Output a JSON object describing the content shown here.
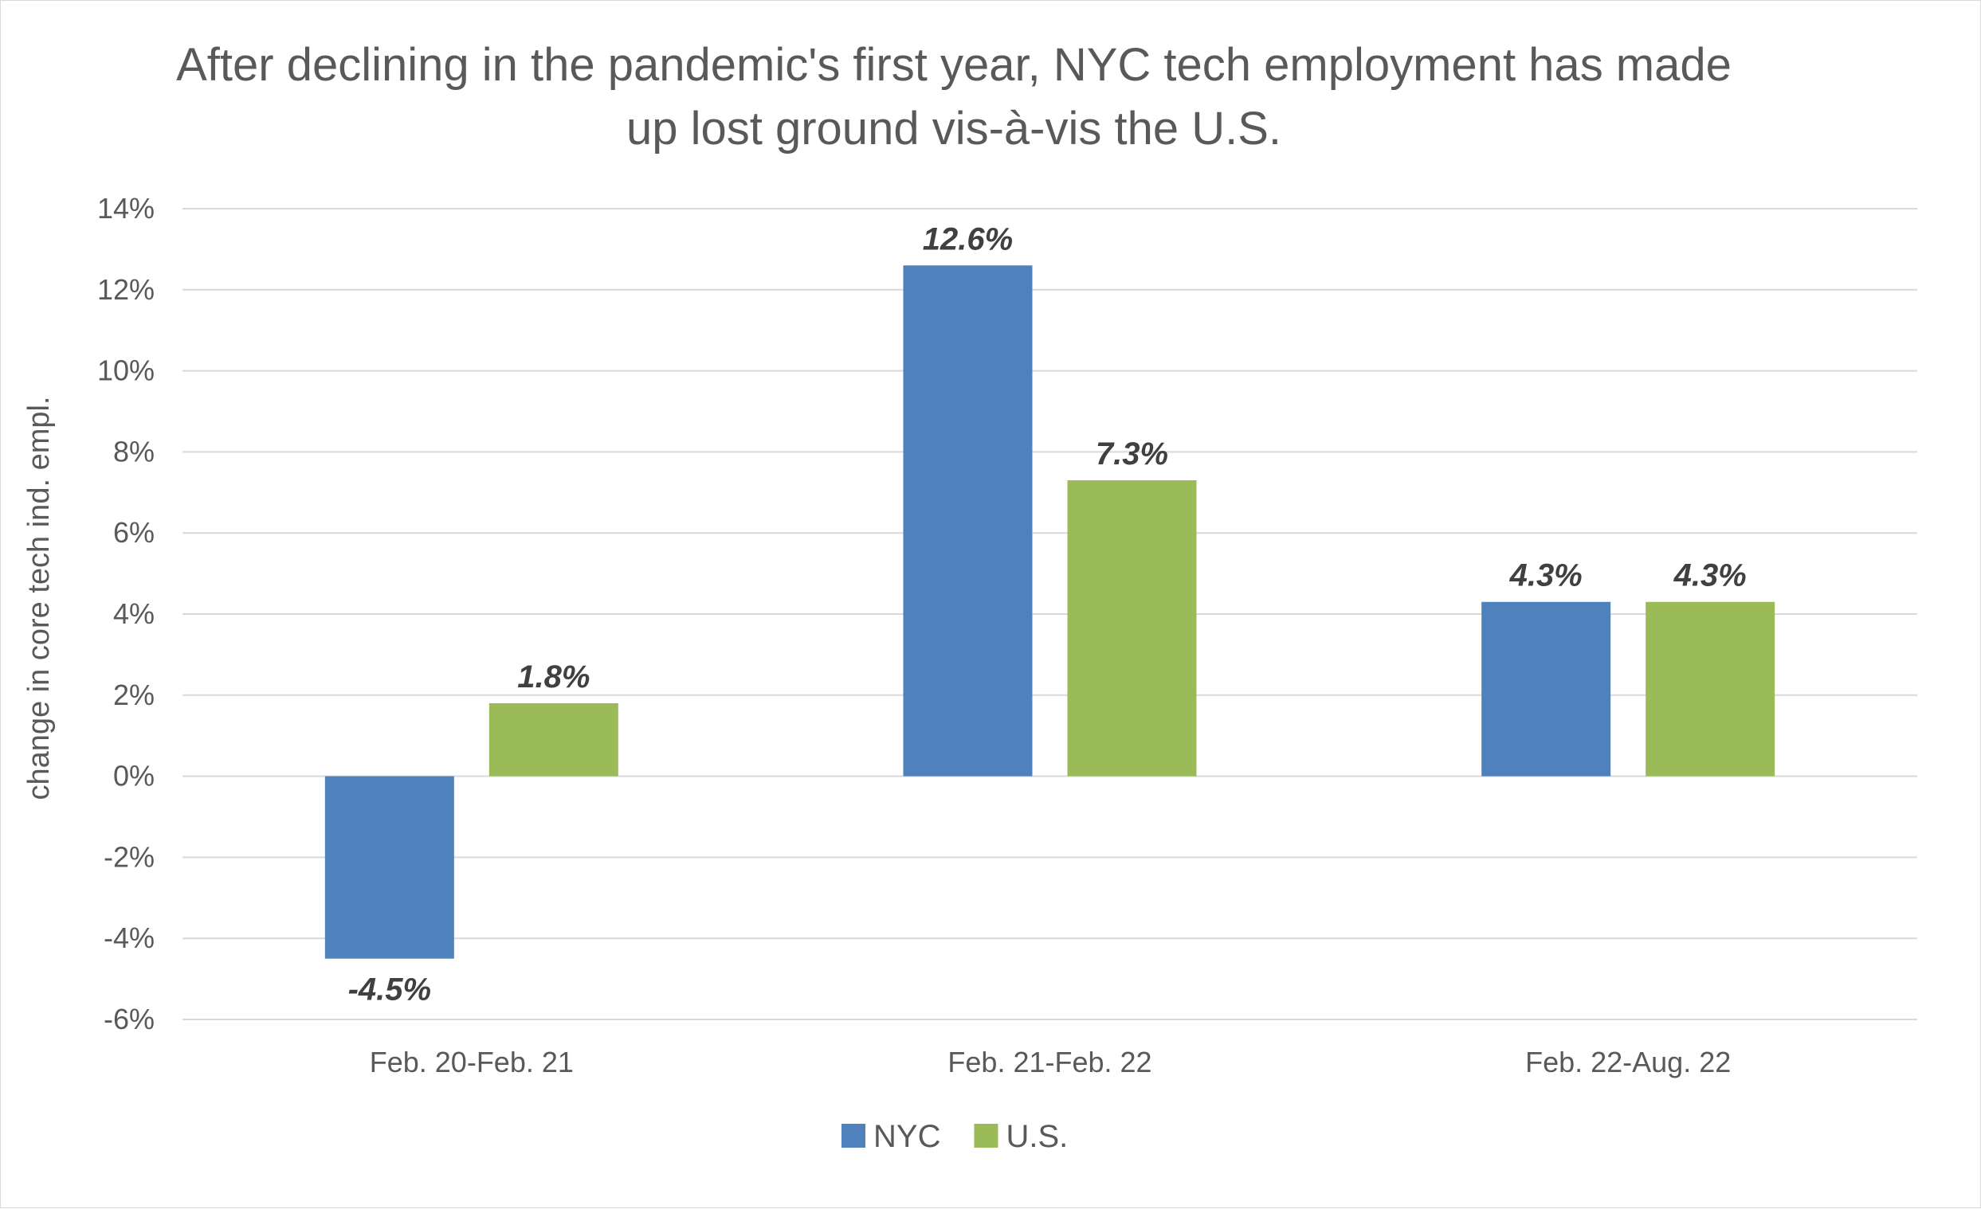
{
  "chart_data": {
    "type": "bar",
    "title": "After declining in the pandemic's first year, NYC tech employment has made up lost ground vis-à-vis the U.S.",
    "title_lines": [
      "After declining in the pandemic's first year, NYC tech employment has made",
      "up lost ground vis-à-vis the U.S."
    ],
    "xlabel": "",
    "ylabel": "change in core tech ind.  empl.",
    "categories": [
      "Feb. 20-Feb. 21",
      "Feb. 21-Feb. 22",
      "Feb. 22-Aug. 22"
    ],
    "series": [
      {
        "name": "NYC",
        "color": "#4f81bd",
        "values": [
          -4.5,
          12.6,
          4.3
        ],
        "labels": [
          "-4.5%",
          "12.6%",
          "4.3%"
        ]
      },
      {
        "name": "U.S.",
        "color": "#9bbb59",
        "values": [
          1.8,
          7.3,
          4.3
        ],
        "labels": [
          "1.8%",
          "7.3%",
          "4.3%"
        ]
      }
    ],
    "ylim": [
      -6,
      14
    ],
    "yticks": [
      14,
      12,
      10,
      8,
      6,
      4,
      2,
      0,
      -2,
      -4,
      -6
    ],
    "ytick_labels": [
      "14%",
      "12%",
      "10%",
      "8%",
      "6%",
      "4%",
      "2%",
      "0%",
      "-2%",
      "-4%",
      "-6%"
    ],
    "grid": true,
    "legend_position": "bottom"
  }
}
